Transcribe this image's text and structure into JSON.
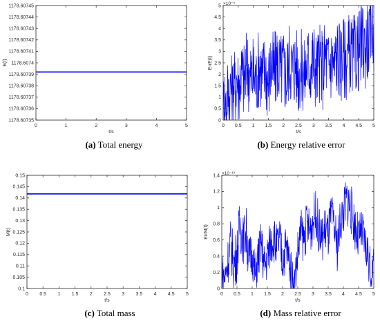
{
  "chart_data": [
    {
      "type": "line",
      "id": "a",
      "xlabel": "t/s",
      "ylabel": "E(t)",
      "xlim": [
        0,
        5
      ],
      "ylim": [
        1178.60735,
        1178.60745
      ],
      "xticks": [
        0,
        1,
        2,
        3,
        4,
        5
      ],
      "xtick_labels": [
        "0",
        "1",
        "2",
        "3",
        "4",
        "5"
      ],
      "yticks": [
        1178.60735,
        1178.60736,
        1178.60737,
        1178.60738,
        1178.60739,
        1178.6074,
        1178.60741,
        1178.60742,
        1178.60743,
        1178.60744,
        1178.60745
      ],
      "ytick_labels": [
        "1178.60735",
        "1178.60736",
        "1178.60737",
        "1178.60738",
        "1178.60739",
        "1178.6074",
        "1178.60741",
        "1178.60742",
        "1178.60743",
        "1178.60744",
        "1178.60745"
      ],
      "exponent": "",
      "series": [
        {
          "x": [
            0,
            5
          ],
          "y": [
            1178.607392,
            1178.607392
          ],
          "color": "#0000ff"
        }
      ],
      "caption_letter": "(a)",
      "caption_text": " Total energy"
    },
    {
      "type": "line",
      "id": "b",
      "xlabel": "t/s",
      "ylabel": "ErrE(t)",
      "xlim": [
        0,
        5
      ],
      "ylim": [
        0,
        5
      ],
      "xticks": [
        0,
        0.5,
        1,
        1.5,
        2,
        2.5,
        3,
        3.5,
        4,
        4.5,
        5
      ],
      "xtick_labels": [
        "0",
        "0.5",
        "1",
        "1.5",
        "2",
        "2.5",
        "3",
        "3.5",
        "4",
        "4.5",
        "5"
      ],
      "yticks": [
        0,
        0.5,
        1,
        1.5,
        2,
        2.5,
        3,
        3.5,
        4,
        4.5,
        5
      ],
      "ytick_labels": [
        "0",
        "0.5",
        "1",
        "1.5",
        "2",
        "2.5",
        "3",
        "3.5",
        "4",
        "4.5",
        "5"
      ],
      "exponent": "×10⁻⁹",
      "series": [
        {
          "color": "#0000ff",
          "x": [
            0,
            0.05,
            0.1,
            0.15,
            0.2,
            0.25,
            0.3,
            0.35,
            0.4,
            0.45,
            0.5,
            0.6,
            0.7,
            0.8,
            0.9,
            1.0,
            1.1,
            1.2,
            1.3,
            1.4,
            1.5,
            1.6,
            1.7,
            1.8,
            1.9,
            2.0,
            2.1,
            2.2,
            2.3,
            2.4,
            2.5,
            2.6,
            2.7,
            2.8,
            2.9,
            3.0,
            3.1,
            3.2,
            3.3,
            3.4,
            3.5,
            3.6,
            3.7,
            3.8,
            3.9,
            4.0,
            4.1,
            4.2,
            4.3,
            4.4,
            4.5,
            4.6,
            4.7,
            4.8,
            4.85,
            4.9,
            4.95,
            5.0
          ],
          "y": [
            0.7,
            1.2,
            0.5,
            1.4,
            0.9,
            1.6,
            1.1,
            1.8,
            1.3,
            2.0,
            1.5,
            2.1,
            1.7,
            2.4,
            1.8,
            2.0,
            1.7,
            2.5,
            1.9,
            2.2,
            1.6,
            2.4,
            2.0,
            2.6,
            2.1,
            2.3,
            1.8,
            2.7,
            2.2,
            2.5,
            2.0,
            2.2,
            1.9,
            2.6,
            2.3,
            2.7,
            2.1,
            2.5,
            2.2,
            2.8,
            2.3,
            2.6,
            2.4,
            2.9,
            2.5,
            2.8,
            2.6,
            3.0,
            2.7,
            2.9,
            3.0,
            3.4,
            3.1,
            3.6,
            3.3,
            3.9,
            4.1,
            3.5
          ],
          "band": [
            1.3,
            1.5,
            1.4,
            1.5,
            1.6,
            1.5,
            1.7,
            1.6,
            1.7,
            1.7,
            1.8,
            1.7,
            1.8,
            1.8,
            1.8,
            1.8,
            1.8,
            1.8,
            1.8,
            1.8,
            1.8,
            1.8,
            1.8,
            1.8,
            1.8,
            1.8,
            1.8,
            1.8,
            1.8,
            1.8,
            1.8,
            1.8,
            1.8,
            1.8,
            1.8,
            1.8,
            1.8,
            1.8,
            1.8,
            1.8,
            1.8,
            1.8,
            1.8,
            1.8,
            1.8,
            1.8,
            1.8,
            1.8,
            1.8,
            1.8,
            1.8,
            1.8,
            1.8,
            1.8,
            1.6,
            1.6,
            1.5,
            1.4
          ]
        }
      ],
      "caption_letter": "(b)",
      "caption_text": " Energy relative error"
    },
    {
      "type": "line",
      "id": "c",
      "xlabel": "t/s",
      "ylabel": "M(t)",
      "xlim": [
        0,
        5
      ],
      "ylim": [
        0.1,
        0.15
      ],
      "xticks": [
        0,
        0.5,
        1,
        1.5,
        2,
        2.5,
        3,
        3.5,
        4,
        4.5,
        5
      ],
      "xtick_labels": [
        "0",
        "0.5",
        "1",
        "1.5",
        "2",
        "2.5",
        "3",
        "3.5",
        "4",
        "4.5",
        "5"
      ],
      "yticks": [
        0.1,
        0.105,
        0.11,
        0.115,
        0.12,
        0.125,
        0.13,
        0.135,
        0.14,
        0.145,
        0.15
      ],
      "ytick_labels": [
        "0.1",
        "0.105",
        "0.11",
        "0.115",
        "0.12",
        "0.125",
        "0.13",
        "0.135",
        "0.14",
        "0.145",
        "0.15"
      ],
      "exponent": "",
      "series": [
        {
          "x": [
            0,
            5
          ],
          "y": [
            0.1418,
            0.1418
          ],
          "color": "#0000ff"
        }
      ],
      "caption_letter": "(c)",
      "caption_text": " Total mass"
    },
    {
      "type": "line",
      "id": "d",
      "xlabel": "t/s",
      "ylabel": "ErrM(t)",
      "xlim": [
        0,
        5
      ],
      "ylim": [
        0,
        1.4
      ],
      "xticks": [
        0,
        0.5,
        1,
        1.5,
        2,
        2.5,
        3,
        3.5,
        4,
        4.5,
        5
      ],
      "xtick_labels": [
        "0",
        "0.5",
        "1",
        "1.5",
        "2",
        "2.5",
        "3",
        "3.5",
        "4",
        "4.5",
        "5"
      ],
      "yticks": [
        0,
        0.2,
        0.4,
        0.6,
        0.8,
        1,
        1.2,
        1.4
      ],
      "ytick_labels": [
        "0",
        "0.2",
        "0.4",
        "0.6",
        "0.8",
        "1",
        "1.2",
        "1.4"
      ],
      "exponent": "×10⁻¹³",
      "series": [
        {
          "color": "#0000ff",
          "x": [
            0,
            0.1,
            0.2,
            0.3,
            0.4,
            0.5,
            0.6,
            0.7,
            0.8,
            0.9,
            1.0,
            1.1,
            1.2,
            1.3,
            1.4,
            1.5,
            1.6,
            1.7,
            1.8,
            1.9,
            2.0,
            2.1,
            2.2,
            2.3,
            2.4,
            2.5,
            2.6,
            2.7,
            2.8,
            2.9,
            3.0,
            3.1,
            3.2,
            3.3,
            3.4,
            3.5,
            3.6,
            3.7,
            3.8,
            3.9,
            4.0,
            4.1,
            4.2,
            4.3,
            4.4,
            4.5,
            4.6,
            4.7,
            4.8,
            4.9,
            5.0
          ],
          "y": [
            0.25,
            0.12,
            0.35,
            0.55,
            0.3,
            0.42,
            0.8,
            0.6,
            0.7,
            0.35,
            0.45,
            0.15,
            0.4,
            0.55,
            0.25,
            0.4,
            0.55,
            0.65,
            0.5,
            0.6,
            0.35,
            0.5,
            0.4,
            0.15,
            0.1,
            0.45,
            0.7,
            0.6,
            0.8,
            0.7,
            0.85,
            0.95,
            0.7,
            0.6,
            0.75,
            0.65,
            0.9,
            0.75,
            0.5,
            0.85,
            0.95,
            1.1,
            1.05,
            0.9,
            0.75,
            0.6,
            0.7,
            0.55,
            0.45,
            0.2,
            0.3
          ],
          "band": [
            0.25,
            0.2,
            0.3,
            0.35,
            0.35,
            0.35,
            0.35,
            0.3,
            0.35,
            0.3,
            0.3,
            0.25,
            0.3,
            0.3,
            0.3,
            0.3,
            0.3,
            0.3,
            0.3,
            0.3,
            0.3,
            0.3,
            0.3,
            0.25,
            0.2,
            0.3,
            0.3,
            0.3,
            0.3,
            0.3,
            0.3,
            0.3,
            0.3,
            0.3,
            0.3,
            0.3,
            0.3,
            0.3,
            0.3,
            0.3,
            0.3,
            0.3,
            0.35,
            0.3,
            0.3,
            0.3,
            0.3,
            0.3,
            0.3,
            0.25,
            0.2
          ]
        }
      ],
      "caption_letter": "(d)",
      "caption_text": " Mass relative error"
    }
  ]
}
